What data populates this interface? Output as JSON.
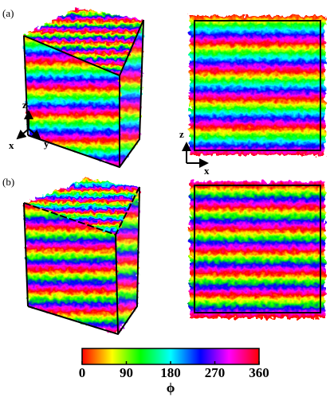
{
  "panels": [
    {
      "label": "(a)"
    },
    {
      "label": "(b)"
    }
  ],
  "axes_3d": {
    "z": "z",
    "x": "x",
    "y": "y"
  },
  "axes_2d": {
    "z": "z",
    "x": "x"
  },
  "colorbar": {
    "label": "ϕ",
    "lim": [
      0,
      360
    ],
    "ticks": [
      0,
      90,
      180,
      270,
      360
    ]
  }
}
